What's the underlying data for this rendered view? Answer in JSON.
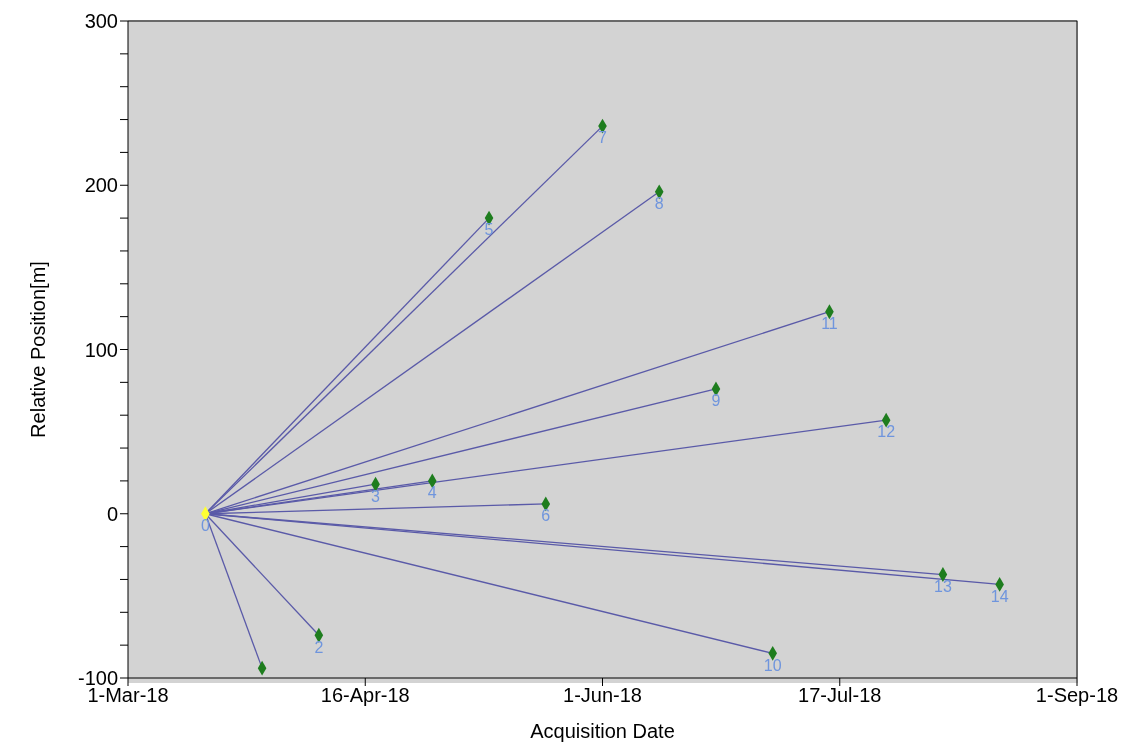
{
  "chart_data": {
    "type": "line",
    "xlabel": "Acquisition Date",
    "ylabel": "Relative Position[m]",
    "xlim": [
      "2018-03-01",
      "2018-09-01"
    ],
    "xticks": [
      {
        "value": "2018-03-01",
        "label": "1-Mar-18"
      },
      {
        "value": "2018-04-16",
        "label": "16-Apr-18"
      },
      {
        "value": "2018-06-01",
        "label": "1-Jun-18"
      },
      {
        "value": "2018-07-17",
        "label": "17-Jul-18"
      },
      {
        "value": "2018-09-01",
        "label": "1-Sep-18"
      }
    ],
    "ylim": [
      -100,
      300
    ],
    "yticks": [
      -100,
      {
        "value": -80,
        "label": null
      },
      {
        "value": -60,
        "label": null
      },
      {
        "value": -40,
        "label": null
      },
      {
        "value": -20,
        "label": null
      },
      0,
      {
        "value": 20,
        "label": null
      },
      {
        "value": 40,
        "label": null
      },
      {
        "value": 60,
        "label": null
      },
      {
        "value": 80,
        "label": null
      },
      100,
      {
        "value": 120,
        "label": null
      },
      {
        "value": 140,
        "label": null
      },
      {
        "value": 160,
        "label": null
      },
      {
        "value": 180,
        "label": null
      },
      200,
      {
        "value": 220,
        "label": null
      },
      {
        "value": 240,
        "label": null
      },
      {
        "value": 260,
        "label": null
      },
      {
        "value": 280,
        "label": null
      },
      300
    ],
    "line_style": "solid",
    "marker": "none",
    "series": [
      {
        "color": "#5a5aa8",
        "x": [
          "2018-03-16",
          "2018-03-27"
        ],
        "values": [
          0,
          -94
        ]
      },
      {
        "color": "#5a5aa8",
        "x": [
          "2018-03-16",
          "2018-04-07"
        ],
        "values": [
          0,
          -74
        ]
      },
      {
        "color": "#5a5aa8",
        "x": [
          "2018-03-16",
          "2018-04-18"
        ],
        "values": [
          0,
          18
        ]
      },
      {
        "color": "#5a5aa8",
        "x": [
          "2018-03-16",
          "2018-04-29"
        ],
        "values": [
          0,
          20
        ]
      },
      {
        "color": "#5a5aa8",
        "x": [
          "2018-03-16",
          "2018-05-10"
        ],
        "values": [
          0,
          180
        ]
      },
      {
        "color": "#5a5aa8",
        "x": [
          "2018-03-16",
          "2018-05-21"
        ],
        "values": [
          0,
          6
        ]
      },
      {
        "color": "#5a5aa8",
        "x": [
          "2018-03-16",
          "2018-06-01"
        ],
        "values": [
          0,
          236
        ]
      },
      {
        "color": "#5a5aa8",
        "x": [
          "2018-03-16",
          "2018-06-12"
        ],
        "values": [
          0,
          196
        ]
      },
      {
        "color": "#5a5aa8",
        "x": [
          "2018-03-16",
          "2018-06-23"
        ],
        "values": [
          0,
          76
        ]
      },
      {
        "color": "#5a5aa8",
        "x": [
          "2018-03-16",
          "2018-07-04"
        ],
        "values": [
          0,
          -85
        ]
      },
      {
        "color": "#5a5aa8",
        "x": [
          "2018-03-16",
          "2018-07-15"
        ],
        "values": [
          0,
          123
        ]
      },
      {
        "color": "#5a5aa8",
        "x": [
          "2018-03-16",
          "2018-07-26"
        ],
        "values": [
          0,
          57
        ]
      },
      {
        "color": "#5a5aa8",
        "x": [
          "2018-03-16",
          "2018-08-06"
        ],
        "values": [
          0,
          -37
        ]
      },
      {
        "color": "#5a5aa8",
        "x": [
          "2018-03-16",
          "2018-08-17"
        ],
        "values": [
          0,
          -43
        ]
      },
      {
        "type": "scatter",
        "marker": "diamond",
        "color": "#1e7d1e",
        "x": [
          "2018-03-27",
          "2018-04-07",
          "2018-04-18",
          "2018-04-29",
          "2018-05-10",
          "2018-05-21",
          "2018-06-01",
          "2018-06-12",
          "2018-06-23",
          "2018-07-04",
          "2018-07-15",
          "2018-07-26",
          "2018-08-06",
          "2018-08-17"
        ],
        "values": [
          -94,
          -74,
          18,
          20,
          180,
          6,
          236,
          196,
          76,
          -85,
          123,
          57,
          -37,
          -43
        ]
      },
      {
        "type": "scatter",
        "marker": "diamond",
        "color": "#ffff33",
        "x": [
          "2018-03-16"
        ],
        "values": [
          0
        ]
      }
    ],
    "annotations": [
      {
        "text": "0",
        "x": "2018-03-16",
        "y": 0
      },
      {
        "text": "2",
        "x": "2018-04-07",
        "y": -74
      },
      {
        "text": "3",
        "x": "2018-04-18",
        "y": 18
      },
      {
        "text": "4",
        "x": "2018-04-29",
        "y": 20
      },
      {
        "text": "5",
        "x": "2018-05-10",
        "y": 180
      },
      {
        "text": "6",
        "x": "2018-05-21",
        "y": 6
      },
      {
        "text": "7",
        "x": "2018-06-01",
        "y": 236
      },
      {
        "text": "8",
        "x": "2018-06-12",
        "y": 196
      },
      {
        "text": "9",
        "x": "2018-06-23",
        "y": 76
      },
      {
        "text": "10",
        "x": "2018-07-04",
        "y": -85
      },
      {
        "text": "11",
        "x": "2018-07-15",
        "y": 123
      },
      {
        "text": "12",
        "x": "2018-07-26",
        "y": 57
      },
      {
        "text": "13",
        "x": "2018-08-06",
        "y": -37
      },
      {
        "text": "14",
        "x": "2018-08-17",
        "y": -43
      }
    ]
  }
}
